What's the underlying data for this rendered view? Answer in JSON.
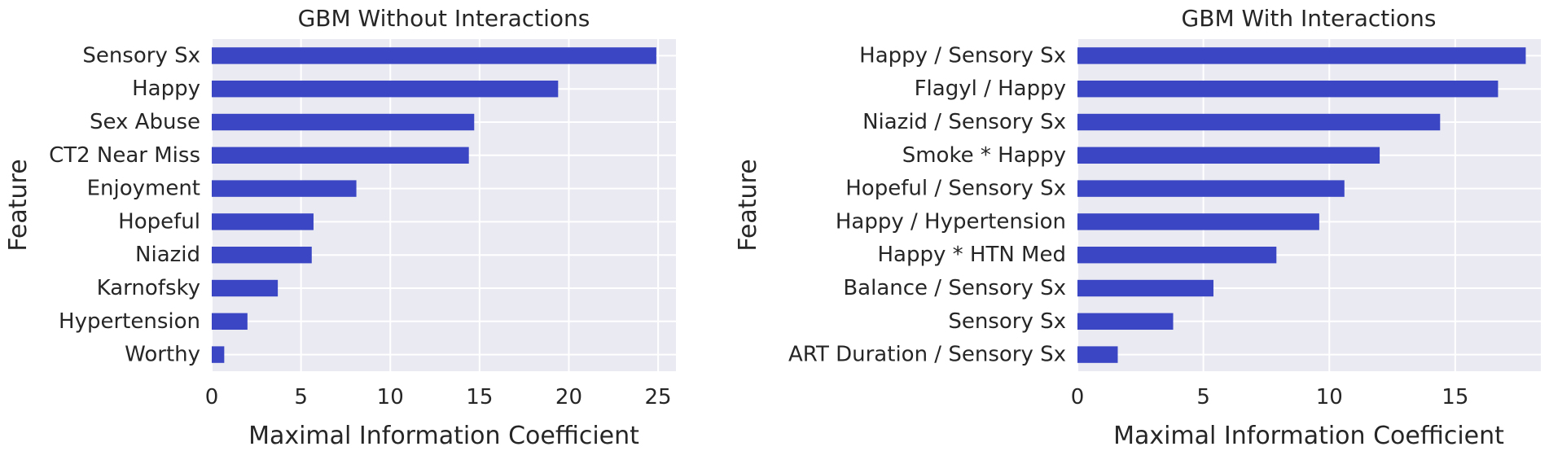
{
  "chart_data": [
    {
      "type": "bar",
      "orientation": "horizontal",
      "title": "GBM Without Interactions",
      "xlabel": "Maximal Information Coefficient",
      "ylabel": "Feature",
      "categories": [
        "Sensory Sx",
        "Happy",
        "Sex Abuse",
        "CT2 Near Miss",
        "Enjoyment",
        "Hopeful",
        "Niazid",
        "Karnofsky",
        "Hypertension",
        "Worthy"
      ],
      "values": [
        24.9,
        19.4,
        14.7,
        14.4,
        8.1,
        5.7,
        5.6,
        3.7,
        2.0,
        0.7
      ],
      "xlim": [
        0,
        26
      ],
      "xticks": [
        0,
        5,
        10,
        15,
        20,
        25
      ],
      "grid": true,
      "bar_color": "#3a46c4"
    },
    {
      "type": "bar",
      "orientation": "horizontal",
      "title": "GBM With Interactions",
      "xlabel": "Maximal Information Coefficient",
      "ylabel": "Feature",
      "categories": [
        "Happy / Sensory Sx",
        "Flagyl / Happy",
        "Niazid / Sensory Sx",
        "Smoke * Happy",
        "Hopeful / Sensory Sx",
        "Happy / Hypertension",
        "Happy * HTN Med",
        "Balance / Sensory Sx",
        "Sensory Sx",
        "ART Duration / Sensory Sx"
      ],
      "values": [
        17.8,
        16.7,
        14.4,
        12.0,
        10.6,
        9.6,
        7.9,
        5.4,
        3.8,
        1.6
      ],
      "xlim": [
        0,
        18.4
      ],
      "xticks": [
        0,
        5,
        10,
        15
      ],
      "grid": true,
      "bar_color": "#3a46c4"
    }
  ],
  "style": {
    "panel_bg": "#eaeaf2",
    "grid_color": "#ffffff",
    "text_color": "#262626"
  }
}
